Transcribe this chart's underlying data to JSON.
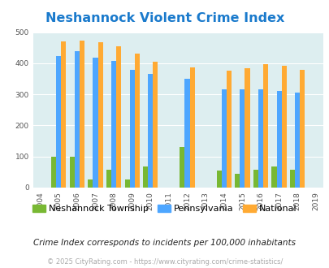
{
  "title": "Neshannock Violent Crime Index",
  "subtitle": "Crime Index corresponds to incidents per 100,000 inhabitants",
  "footer": "© 2025 CityRating.com - https://www.cityrating.com/crime-statistics/",
  "years": [
    2005,
    2006,
    2007,
    2008,
    2009,
    2010,
    2012,
    2014,
    2015,
    2016,
    2017,
    2018
  ],
  "xtick_years": [
    2004,
    2005,
    2006,
    2007,
    2008,
    2009,
    2010,
    2011,
    2012,
    2013,
    2014,
    2015,
    2016,
    2017,
    2018,
    2019
  ],
  "neshannock": [
    100,
    100,
    25,
    57,
    25,
    67,
    130,
    55,
    44,
    57,
    67,
    58
  ],
  "pennsylvania": [
    422,
    440,
    417,
    408,
    380,
    366,
    349,
    316,
    315,
    315,
    311,
    305
  ],
  "national": [
    469,
    474,
    467,
    455,
    432,
    405,
    387,
    376,
    383,
    397,
    393,
    380
  ],
  "color_neshannock": "#78b833",
  "color_pennsylvania": "#4da6ff",
  "color_national": "#ffaa33",
  "background_color": "#ddeef0",
  "ylim": [
    0,
    500
  ],
  "yticks": [
    0,
    100,
    200,
    300,
    400,
    500
  ],
  "bar_width": 0.27,
  "title_color": "#1a7acc",
  "title_fontsize": 11.5,
  "legend_fontsize": 8,
  "subtitle_fontsize": 7.5,
  "footer_fontsize": 6,
  "footer_color": "#aaaaaa",
  "subtitle_color": "#222222",
  "tick_fontsize": 6.5
}
